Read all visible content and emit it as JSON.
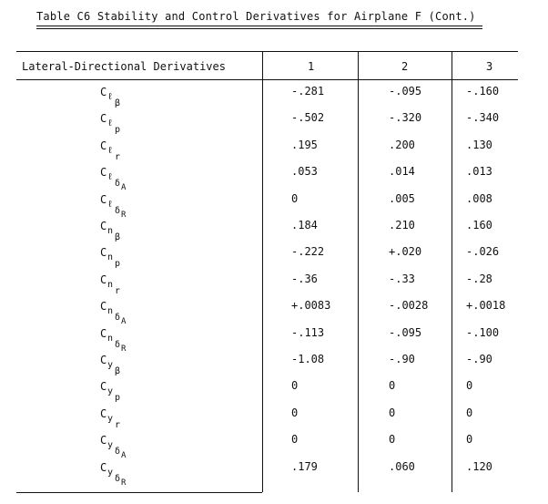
{
  "title": "Table C6  Stability and Control Derivatives for Airplane F (Cont.)",
  "header": {
    "label": "Lateral-Directional Derivatives",
    "columns": [
      "1",
      "2",
      "3"
    ]
  },
  "rows": [
    {
      "c": "C",
      "s1": "ℓ",
      "s2": "β",
      "s3": "",
      "v": [
        "-.281",
        "-.095",
        "-.160"
      ]
    },
    {
      "c": "C",
      "s1": "ℓ",
      "s2": "p",
      "s3": "",
      "v": [
        "-.502",
        "-.320",
        "-.340"
      ]
    },
    {
      "c": "C",
      "s1": "ℓ",
      "s2": "r",
      "s3": "",
      "v": [
        ".195",
        ".200",
        ".130"
      ]
    },
    {
      "c": "C",
      "s1": "ℓ",
      "s2": "δ",
      "s3": "A",
      "v": [
        ".053",
        ".014",
        ".013"
      ]
    },
    {
      "c": "C",
      "s1": "ℓ",
      "s2": "δ",
      "s3": "R",
      "v": [
        "0",
        ".005",
        ".008"
      ]
    },
    {
      "c": "C",
      "s1": "n",
      "s2": "β",
      "s3": "",
      "v": [
        ".184",
        ".210",
        ".160"
      ]
    },
    {
      "c": "C",
      "s1": "n",
      "s2": "p",
      "s3": "",
      "v": [
        "-.222",
        "+.020",
        "-.026"
      ]
    },
    {
      "c": "C",
      "s1": "n",
      "s2": "r",
      "s3": "",
      "v": [
        "-.36",
        "-.33",
        "-.28"
      ]
    },
    {
      "c": "C",
      "s1": "n",
      "s2": "δ",
      "s3": "A",
      "v": [
        "+.0083",
        "-.0028",
        "+.0018"
      ]
    },
    {
      "c": "C",
      "s1": "n",
      "s2": "δ",
      "s3": "R",
      "v": [
        "-.113",
        "-.095",
        "-.100"
      ]
    },
    {
      "c": "C",
      "s1": "y",
      "s2": "β",
      "s3": "",
      "v": [
        "-1.08",
        "-.90",
        "-.90"
      ]
    },
    {
      "c": "C",
      "s1": "y",
      "s2": "p",
      "s3": "",
      "v": [
        "0",
        "0",
        "0"
      ]
    },
    {
      "c": "C",
      "s1": "y",
      "s2": "r",
      "s3": "",
      "v": [
        "0",
        "0",
        "0"
      ]
    },
    {
      "c": "C",
      "s1": "y",
      "s2": "δ",
      "s3": "A",
      "v": [
        "0",
        "0",
        "0"
      ]
    },
    {
      "c": "C",
      "s1": "y",
      "s2": "δ",
      "s3": "R",
      "v": [
        ".179",
        ".060",
        ".120"
      ]
    }
  ]
}
